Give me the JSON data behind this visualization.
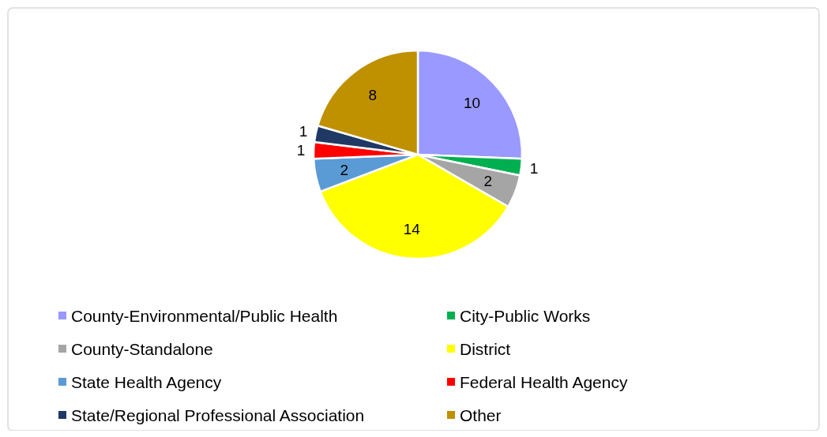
{
  "chart_data": {
    "type": "pie",
    "categories": [
      "County-Environmental/Public Health",
      "City-Public Works",
      "County-Standalone",
      "District",
      "State Health Agency",
      "Federal Health Agency",
      "State/Regional Professional Association",
      "Other"
    ],
    "values": [
      10,
      1,
      2,
      14,
      2,
      1,
      1,
      8
    ],
    "colors": [
      "#9999ff",
      "#00b050",
      "#a5a5a5",
      "#ffff00",
      "#5b9bd5",
      "#ff0000",
      "#203864",
      "#bf9000"
    ],
    "data_labels": true,
    "legend": "bottom"
  }
}
